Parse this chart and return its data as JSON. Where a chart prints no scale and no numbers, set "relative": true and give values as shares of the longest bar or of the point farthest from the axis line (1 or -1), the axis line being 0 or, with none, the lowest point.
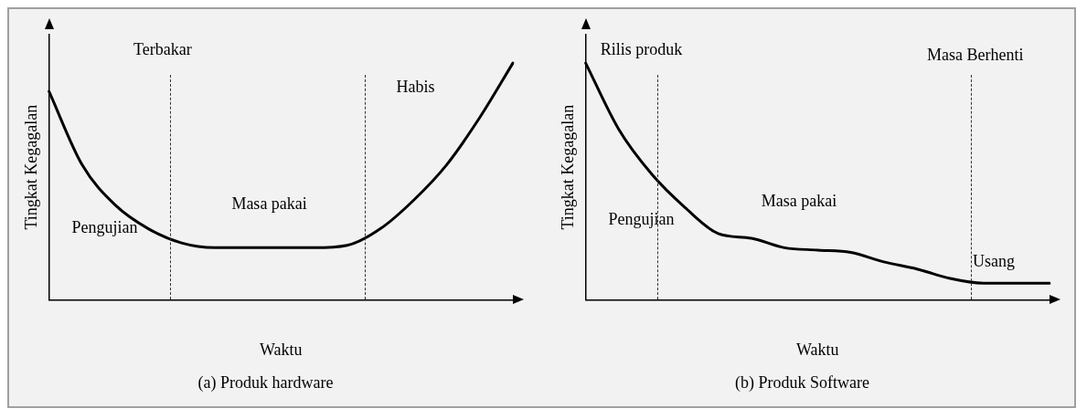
{
  "chart_data": [
    {
      "type": "line",
      "title": "(a) Produk hardware",
      "xlabel": "Waktu",
      "ylabel": "Tingkat Kegagalan",
      "relative": true,
      "grid": false,
      "legend": false,
      "marker": "none",
      "line_style": "solid",
      "categories": [
        null,
        null,
        null,
        null,
        null,
        null,
        null,
        null,
        null,
        null,
        null,
        null,
        null,
        null,
        null
      ],
      "series": [
        {
          "color": "#000000",
          "values": [
            0.88,
            0.57,
            0.4,
            0.3,
            0.24,
            0.22,
            0.22,
            0.22,
            0.22,
            0.23,
            0.3,
            0.42,
            0.57,
            0.77,
            1
          ]
        }
      ],
      "annotations": [
        "Terbakar",
        "Habis",
        "Masa pakai",
        "Pengujian"
      ]
    },
    {
      "type": "line",
      "title": "(b) Produk Software",
      "xlabel": "Waktu",
      "ylabel": "Tingkat Kegagalan",
      "relative": true,
      "grid": false,
      "legend": false,
      "marker": "none",
      "line_style": "solid",
      "categories": [
        null,
        null,
        null,
        null,
        null,
        null,
        null,
        null,
        null,
        null,
        null,
        null,
        null,
        null,
        null
      ],
      "series": [
        {
          "color": "#000000",
          "values": [
            1,
            0.72,
            0.53,
            0.39,
            0.28,
            0.26,
            0.22,
            0.21,
            0.2,
            0.16,
            0.13,
            0.09,
            0.07,
            0.07,
            0.07
          ]
        }
      ],
      "annotations": [
        "Rilis produk",
        "Masa Berhenti",
        "Pengujian",
        "Masa pakai",
        "Usang"
      ]
    }
  ]
}
